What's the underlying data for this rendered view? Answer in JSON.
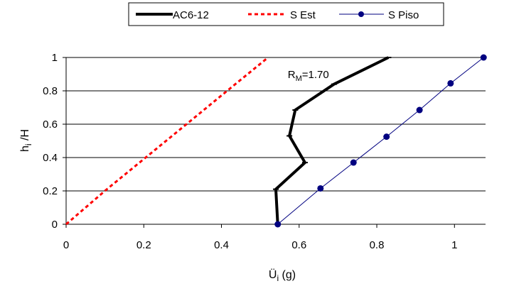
{
  "chart_data": {
    "type": "line",
    "xlabel": "Ü",
    "xlabel_sub": "i",
    "xlabel_unit": " (g)",
    "ylabel": "h",
    "ylabel_sub": "i",
    "ylabel_rest": " /H",
    "xlim": [
      0,
      1.08
    ],
    "ylim": [
      0,
      1
    ],
    "xticks": [
      "0",
      "0.2",
      "0.4",
      "0.6",
      "0.8",
      "1"
    ],
    "yticks": [
      "0",
      "0.2",
      "0.4",
      "0.6",
      "0.8",
      "1"
    ],
    "grid": "horizontal",
    "legend_position": "top",
    "annotation": {
      "main": "R",
      "sub": "M",
      "rest": "=1.70",
      "x": 0.545,
      "y": 0.92
    },
    "series": [
      {
        "name": "AC6-12",
        "style": "thick-solid",
        "color": "#000000",
        "x": [
          0.545,
          0.54,
          0.615,
          0.575,
          0.59,
          0.69,
          0.83
        ],
        "y": [
          0,
          0.21,
          0.37,
          0.53,
          0.685,
          0.84,
          1.0
        ]
      },
      {
        "name": "S Est",
        "style": "dashed",
        "color": "#ff0000",
        "x": [
          0,
          0.105,
          0.21,
          0.315,
          0.42,
          0.52
        ],
        "y": [
          0,
          0.21,
          0.41,
          0.61,
          0.81,
          1.0
        ]
      },
      {
        "name": "S Piso",
        "style": "line-marker",
        "color": "#000080",
        "x": [
          0.545,
          0.655,
          0.74,
          0.825,
          0.91,
          0.99,
          1.075
        ],
        "y": [
          0,
          0.215,
          0.37,
          0.525,
          0.685,
          0.845,
          1.0
        ]
      }
    ]
  }
}
